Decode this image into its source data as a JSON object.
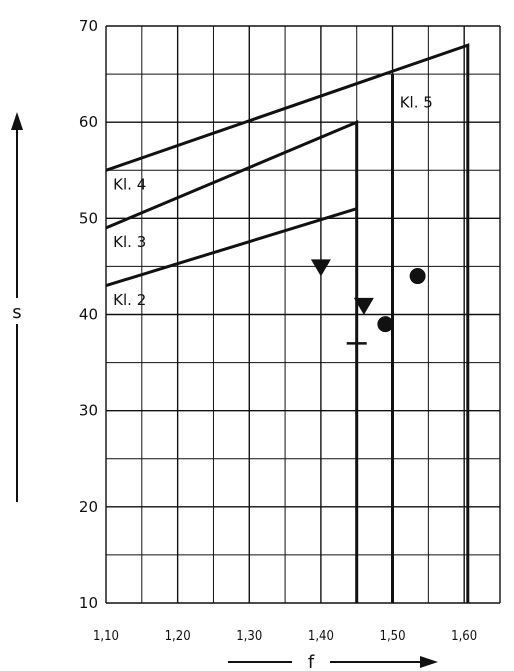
{
  "chart_data": {
    "type": "line",
    "xlabel": "f",
    "ylabel": "s",
    "xlim": [
      1.1,
      1.65
    ],
    "ylim": [
      10,
      70
    ],
    "x_ticks": [
      "1,10",
      "1,20",
      "1,30",
      "1,40",
      "1,50",
      "1,60"
    ],
    "y_ticks": [
      "10",
      "20",
      "30",
      "40",
      "50",
      "60",
      "70"
    ],
    "grid": true,
    "class_lines": [
      {
        "name": "Kl. 2",
        "points": [
          [
            1.1,
            43
          ],
          [
            1.45,
            51
          ]
        ]
      },
      {
        "name": "Kl. 3",
        "points": [
          [
            1.1,
            49
          ],
          [
            1.45,
            60
          ],
          [
            1.45,
            10
          ]
        ]
      },
      {
        "name": "Kl. 4",
        "points": [
          [
            1.1,
            55
          ],
          [
            1.605,
            68
          ],
          [
            1.605,
            10
          ]
        ]
      },
      {
        "name": "Kl. 5",
        "points": [
          [
            1.5,
            65
          ],
          [
            1.5,
            10
          ]
        ]
      }
    ],
    "points": [
      {
        "marker": "triangle-down",
        "x": 1.4,
        "y": 45
      },
      {
        "marker": "triangle-down",
        "x": 1.46,
        "y": 41
      },
      {
        "marker": "circle",
        "x": 1.49,
        "y": 39
      },
      {
        "marker": "circle",
        "x": 1.535,
        "y": 44
      },
      {
        "marker": "plus",
        "x": 1.45,
        "y": 37
      }
    ]
  }
}
